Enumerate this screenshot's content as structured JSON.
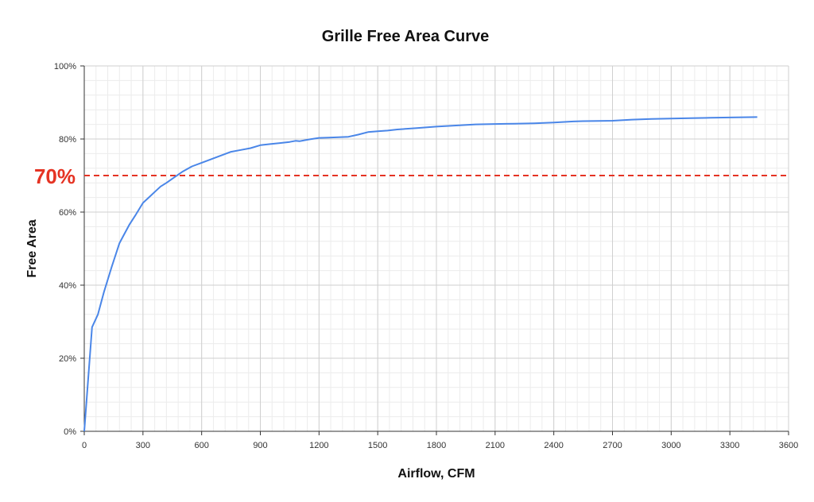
{
  "chart_data": {
    "type": "line",
    "title": "Grille Free Area Curve",
    "xlabel": "Airflow, CFM",
    "ylabel": "Free Area",
    "xlim": [
      0,
      3600
    ],
    "ylim": [
      0,
      100
    ],
    "x_ticks": [
      0,
      300,
      600,
      900,
      1200,
      1500,
      1800,
      2100,
      2400,
      2700,
      3000,
      3300,
      3600
    ],
    "x_tick_labels": [
      "0",
      "300",
      "600",
      "900",
      "1200",
      "1500",
      "1800",
      "2100",
      "2400",
      "2700",
      "3000",
      "3300",
      "3600"
    ],
    "y_ticks": [
      0,
      20,
      40,
      60,
      80,
      100
    ],
    "y_tick_labels": [
      "0%",
      "20%",
      "40%",
      "60%",
      "80%",
      "100%"
    ],
    "grid": true,
    "line_color": "#4a86e8",
    "reference_line": {
      "value": 70,
      "label": "70%",
      "color": "#e53323",
      "style": "dashed"
    },
    "series": [
      {
        "x": [
          0,
          40,
          70,
          100,
          140,
          180,
          200,
          230,
          260,
          300,
          330,
          360,
          390,
          420,
          460,
          500,
          550,
          600,
          650,
          700,
          750,
          800,
          850,
          900,
          950,
          1000,
          1050,
          1080,
          1100,
          1150,
          1200,
          1250,
          1300,
          1350,
          1400,
          1450,
          1500,
          1550,
          1600,
          1700,
          1800,
          1900,
          2000,
          2100,
          2200,
          2300,
          2400,
          2500,
          2550,
          2700,
          2800,
          2900,
          3000,
          3100,
          3200,
          3300,
          3440
        ],
        "y": [
          0,
          28.5,
          32,
          38,
          45,
          51.5,
          53.5,
          56.5,
          59,
          62.5,
          64,
          65.5,
          67,
          68,
          69.5,
          71,
          72.5,
          73.5,
          74.5,
          75.5,
          76.5,
          77,
          77.5,
          78.3,
          78.6,
          78.9,
          79.2,
          79.5,
          79.4,
          79.9,
          80.3,
          80.4,
          80.5,
          80.6,
          81.2,
          81.9,
          82.1,
          82.3,
          82.6,
          83,
          83.4,
          83.7,
          84,
          84.1,
          84.2,
          84.3,
          84.5,
          84.8,
          84.9,
          85,
          85.3,
          85.5,
          85.6,
          85.7,
          85.8,
          85.9,
          86
        ]
      }
    ]
  }
}
